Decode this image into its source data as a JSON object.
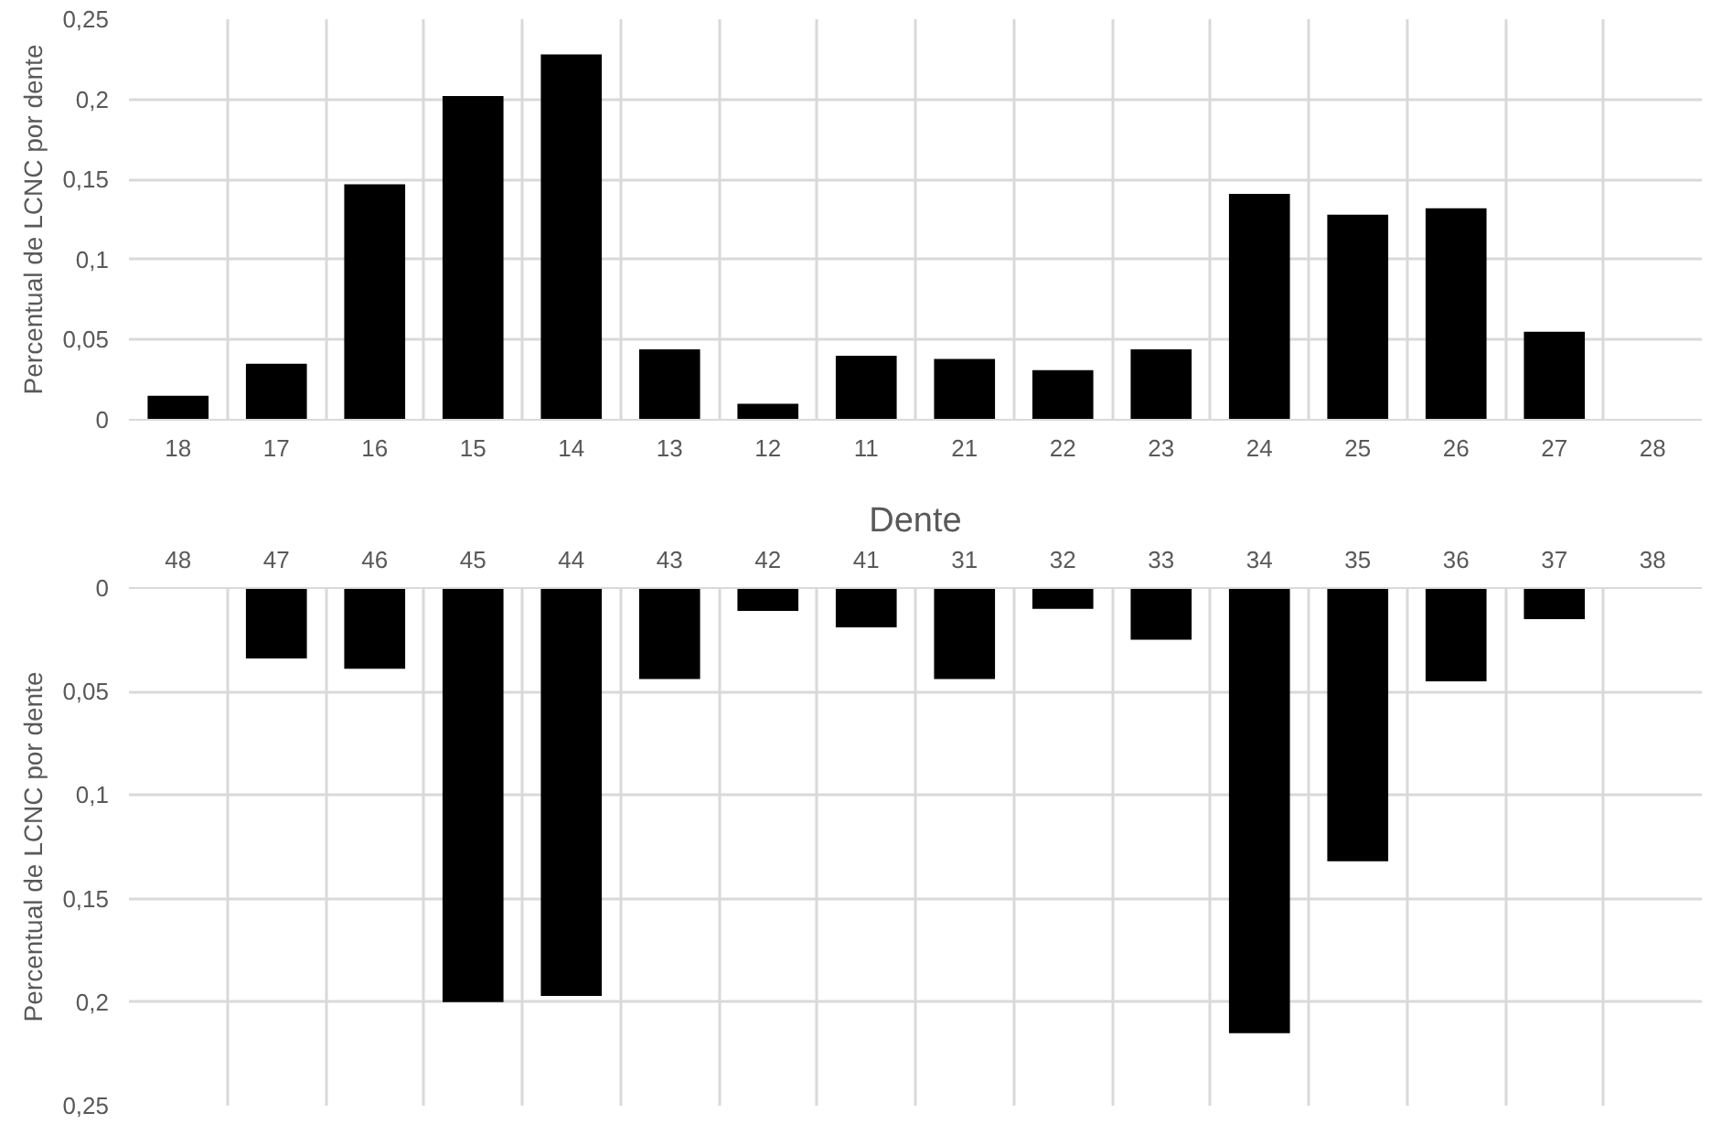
{
  "chart_data": [
    {
      "type": "bar",
      "xlabel": "Dente",
      "ylabel": "Percentual de LCNC por dente",
      "categories": [
        "18",
        "17",
        "16",
        "15",
        "14",
        "13",
        "12",
        "11",
        "21",
        "22",
        "23",
        "24",
        "25",
        "26",
        "27",
        "28"
      ],
      "series": [
        {
          "color": "#000000",
          "values": [
            0.015,
            0.035,
            0.147,
            0.202,
            0.228,
            0.044,
            0.01,
            0.04,
            0.038,
            0.031,
            0.044,
            0.141,
            0.128,
            0.132,
            0.055,
            0
          ]
        }
      ],
      "ylim": [
        0,
        0.25
      ],
      "yticks": [
        0,
        {
          "value": 0.05,
          "label": "0,05"
        },
        {
          "value": 0.1,
          "label": "0,1"
        },
        {
          "value": 0.15,
          "label": "0,15"
        },
        {
          "value": 0.2,
          "label": "0,2"
        },
        {
          "value": 0.25,
          "label": "0,25"
        }
      ],
      "grid": true
    },
    {
      "type": "bar",
      "ylabel": "Percentual de LCNC por dente",
      "categories": [
        "48",
        "47",
        "46",
        "45",
        "44",
        "43",
        "42",
        "41",
        "31",
        "32",
        "33",
        "34",
        "35",
        "36",
        "37",
        "38"
      ],
      "series": [
        {
          "color": "#000000",
          "values": [
            0,
            0.034,
            0.039,
            0.2,
            0.197,
            0.044,
            0.011,
            0.019,
            0.044,
            0.01,
            0.025,
            0.215,
            0.132,
            0.045,
            0.015,
            0
          ]
        }
      ],
      "ylim": [
        0.25,
        0
      ],
      "yticks": [
        0,
        {
          "value": 0.05,
          "label": "0,05"
        },
        {
          "value": 0.1,
          "label": "0,1"
        },
        {
          "value": 0.15,
          "label": "0,15"
        },
        {
          "value": 0.2,
          "label": "0,2"
        },
        {
          "value": 0.25,
          "label": "0,25"
        }
      ],
      "grid": true
    }
  ]
}
